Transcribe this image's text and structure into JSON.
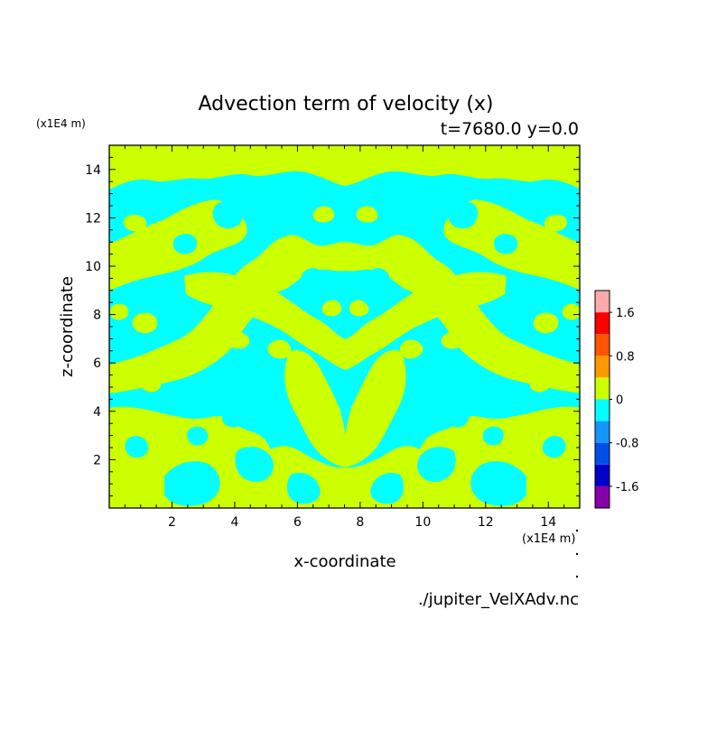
{
  "chart_data": {
    "type": "heatmap",
    "title": "Advection term of velocity (x)",
    "subtitle": "t=7680.0 y=0.0",
    "xlabel": "x-coordinate",
    "ylabel": "z-coordinate",
    "x_unit": "(x1E4 m)",
    "y_unit": "(x1E4 m)",
    "xlim": [
      0,
      15
    ],
    "ylim": [
      0,
      15
    ],
    "x_ticks": [
      2,
      4,
      6,
      8,
      10,
      12,
      14
    ],
    "y_ticks": [
      2,
      4,
      6,
      8,
      10,
      12,
      14
    ],
    "x_tick_labels": [
      "2",
      "4",
      "6",
      "8",
      "10",
      "12",
      "14"
    ],
    "y_tick_labels": [
      "2",
      "4",
      "6",
      "8",
      "10",
      "12",
      "14"
    ],
    "source_file": "./jupiter_VelXAdv.nc",
    "colorbar": {
      "levels": [
        -2.0,
        -1.6,
        -1.2,
        -0.8,
        -0.4,
        0,
        0.4,
        0.8,
        1.2,
        1.6,
        2.0
      ],
      "tick_values": [
        1.6,
        0.8,
        0,
        -0.8,
        -1.6
      ],
      "tick_labels": [
        "1.6",
        "0.8",
        "0",
        "-0.8",
        "-1.6"
      ],
      "colors": [
        "#8800aa",
        "#0000c8",
        "#0050e8",
        "#1496ff",
        "#00ffff",
        "#ccff00",
        "#ff9900",
        "#ff5500",
        "#ff0000",
        "#ffaaaa"
      ]
    },
    "field_colors": {
      "negative": "#00ffff",
      "positive": "#ccff00"
    },
    "symmetry_axis_x": 7.5
  }
}
